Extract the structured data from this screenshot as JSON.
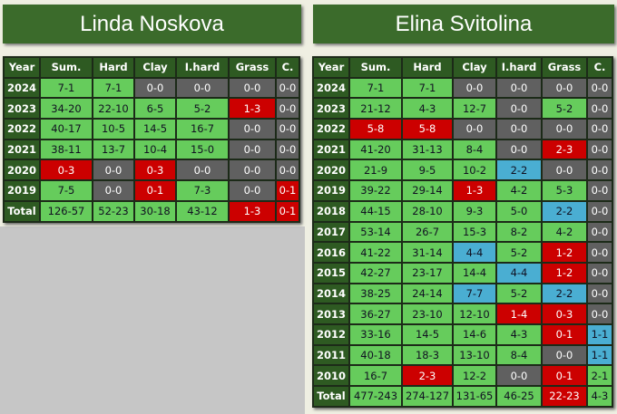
{
  "players": [
    {
      "name": "Linda Noskova",
      "table": {
        "header": [
          "Year",
          "Sum.",
          "Hard",
          "Clay",
          "I.hard",
          "Grass",
          "C."
        ],
        "rows": [
          [
            "2024",
            "7-1",
            "7-1",
            "0-0",
            "0-0",
            "0-0",
            "0-0"
          ],
          [
            "2023",
            "34-20",
            "22-10",
            "6-5",
            "5-2",
            "1-3",
            "0-0"
          ],
          [
            "2022",
            "40-17",
            "10-5",
            "14-5",
            "16-7",
            "0-0",
            "0-0"
          ],
          [
            "2021",
            "38-11",
            "13-7",
            "10-4",
            "15-0",
            "0-0",
            "0-0"
          ],
          [
            "2020",
            "0-3",
            "0-0",
            "0-3",
            "0-0",
            "0-0",
            "0-0"
          ],
          [
            "2019",
            "7-5",
            "0-0",
            "0-1",
            "7-3",
            "0-0",
            "0-1"
          ],
          [
            "Total",
            "126-57",
            "52-23",
            "30-18",
            "43-12",
            "1-3",
            "0-1"
          ]
        ]
      }
    },
    {
      "name": "Elina Svitolina",
      "table": {
        "header": [
          "Year",
          "Sum.",
          "Hard",
          "Clay",
          "I.hard",
          "Grass",
          "C."
        ],
        "rows": [
          [
            "2024",
            "7-1",
            "7-1",
            "0-0",
            "0-0",
            "0-0",
            "0-0"
          ],
          [
            "2023",
            "21-12",
            "4-3",
            "12-7",
            "0-0",
            "5-2",
            "0-0"
          ],
          [
            "2022",
            "5-8",
            "5-8",
            "0-0",
            "0-0",
            "0-0",
            "0-0"
          ],
          [
            "2021",
            "41-20",
            "31-13",
            "8-4",
            "0-0",
            "2-3",
            "0-0"
          ],
          [
            "2020",
            "21-9",
            "9-5",
            "10-2",
            "2-2",
            "0-0",
            "0-0"
          ],
          [
            "2019",
            "39-22",
            "29-14",
            "1-3",
            "4-2",
            "5-3",
            "0-0"
          ],
          [
            "2018",
            "44-15",
            "28-10",
            "9-3",
            "5-0",
            "2-2",
            "0-0"
          ],
          [
            "2017",
            "53-14",
            "26-7",
            "15-3",
            "8-2",
            "4-2",
            "0-0"
          ],
          [
            "2016",
            "41-22",
            "31-14",
            "4-4",
            "5-2",
            "1-2",
            "0-0"
          ],
          [
            "2015",
            "42-27",
            "23-17",
            "14-4",
            "4-4",
            "1-2",
            "0-0"
          ],
          [
            "2014",
            "38-25",
            "24-14",
            "7-7",
            "5-2",
            "2-2",
            "0-0"
          ],
          [
            "2013",
            "36-27",
            "23-10",
            "12-10",
            "1-4",
            "0-3",
            "0-0"
          ],
          [
            "2012",
            "33-16",
            "14-5",
            "14-6",
            "4-3",
            "0-1",
            "1-1"
          ],
          [
            "2011",
            "40-18",
            "18-3",
            "13-10",
            "8-4",
            "0-0",
            "1-1"
          ],
          [
            "2010",
            "16-7",
            "2-3",
            "12-2",
            "0-0",
            "0-1",
            "2-1"
          ],
          [
            "Total",
            "477-243",
            "274-127",
            "131-65",
            "46-25",
            "22-23",
            "4-3"
          ]
        ]
      }
    }
  ]
}
